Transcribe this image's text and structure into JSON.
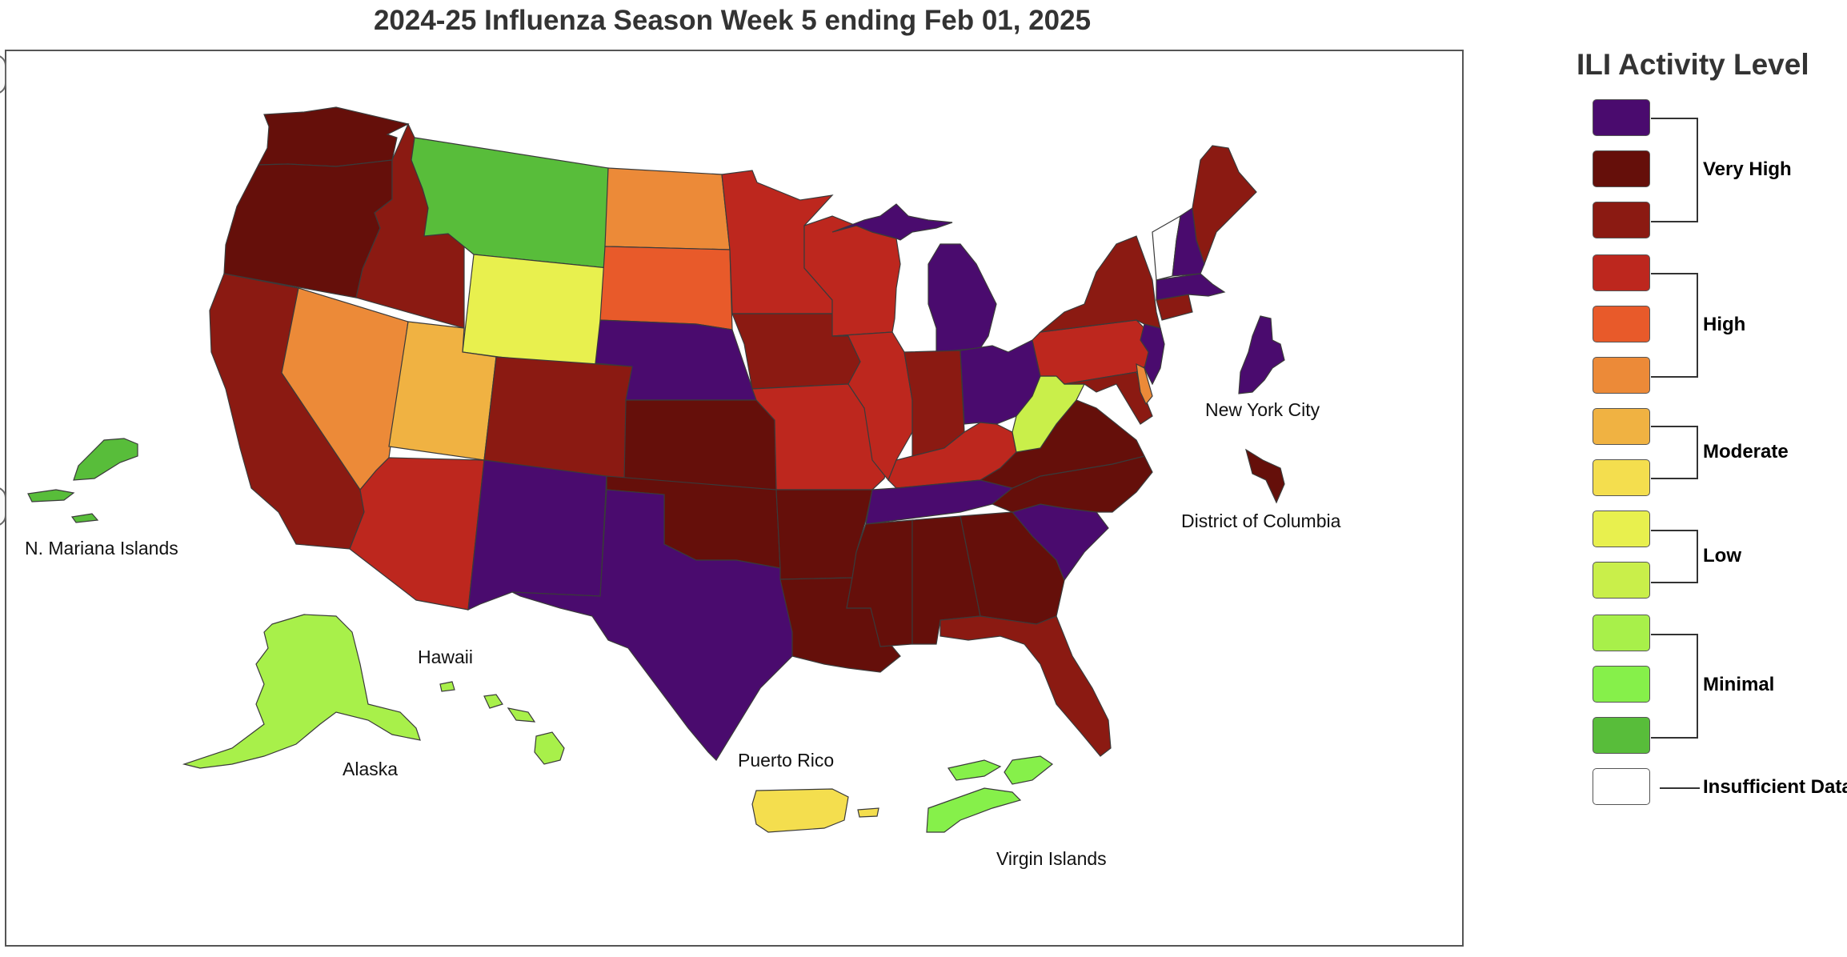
{
  "title": "2024-25 Influenza Season Week 5 ending Feb 01, 2025",
  "legend": {
    "title": "ILI Activity Level",
    "levels": [
      {
        "level": 13,
        "color": "#4a0b6e"
      },
      {
        "level": 12,
        "color": "#650f0a"
      },
      {
        "level": 11,
        "color": "#8b1a12"
      },
      {
        "level": 10,
        "color": "#bd271e"
      },
      {
        "level": 9,
        "color": "#e85a2a"
      },
      {
        "level": 8,
        "color": "#ec8a38"
      },
      {
        "level": 7,
        "color": "#f0b242"
      },
      {
        "level": 6,
        "color": "#f4de4e"
      },
      {
        "level": 5,
        "color": "#e8f04e"
      },
      {
        "level": 4,
        "color": "#c9ef4a"
      },
      {
        "level": 3,
        "color": "#a8f04a"
      },
      {
        "level": 2,
        "color": "#86f04a"
      },
      {
        "level": 1,
        "color": "#58bd3a"
      },
      {
        "level": 0,
        "color": "#ffffff"
      }
    ],
    "groups": [
      {
        "label": "Very High"
      },
      {
        "label": "High"
      },
      {
        "label": "Moderate"
      },
      {
        "label": "Low"
      },
      {
        "label": "Minimal"
      },
      {
        "label": "Insufficient Data"
      }
    ]
  },
  "territory_labels": {
    "nmi": "N. Mariana Islands",
    "hawaii": "Hawaii",
    "alaska": "Alaska",
    "puerto_rico": "Puerto Rico",
    "virgin_islands": "Virgin Islands",
    "nyc": "New York City",
    "dc": "District of Columbia"
  },
  "regions": {
    "WA": 12,
    "OR": 12,
    "CA": 11,
    "ID": 11,
    "NV": 8,
    "MT": 1,
    "WY": 5,
    "UT": 7,
    "AZ": 10,
    "CO": 11,
    "NM": 13,
    "ND": 8,
    "SD": 9,
    "NE": 13,
    "KS": 12,
    "OK": 12,
    "TX": 13,
    "MN": 10,
    "IA": 11,
    "MO": 10,
    "AR": 12,
    "LA": 12,
    "WI": 10,
    "IL": 10,
    "MI": 13,
    "IN": 11,
    "OH": 13,
    "KY": 10,
    "TN": 13,
    "MS": 12,
    "AL": 12,
    "GA": 12,
    "FL": 11,
    "SC": 13,
    "NC": 12,
    "VA": 12,
    "WV": 4,
    "MD": 11,
    "DE": 8,
    "PA": 10,
    "NJ": 13,
    "NY": 11,
    "CT": 11,
    "RI": 11,
    "MA": 13,
    "VT": 0,
    "NH": 13,
    "ME": 11,
    "AK": 3,
    "HI": 3,
    "NMI": 1,
    "PR": 6,
    "VI": 2,
    "NYC": 13,
    "DC": 12
  }
}
